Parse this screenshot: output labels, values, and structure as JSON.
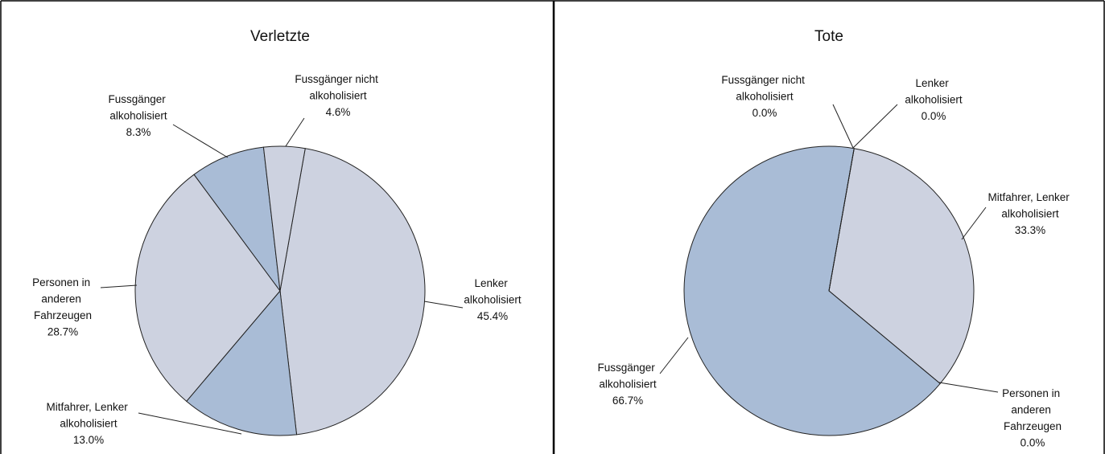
{
  "chart_data": [
    {
      "type": "pie",
      "title": "Verletzte",
      "categories": [
        "Lenker alkoholisiert",
        "Mitfahrer, Lenker alkoholisiert",
        "Personen in anderen Fahrzeugen",
        "Fussgänger alkoholisiert",
        "Fussgänger nicht alkoholisiert"
      ],
      "values": [
        45.4,
        13.0,
        28.7,
        8.3,
        4.6
      ],
      "value_labels": [
        "45.4%",
        "13.0%",
        "28.7%",
        "8.3%",
        "4.6%"
      ],
      "colors": [
        "#cdd2e0",
        "#a9bcd6",
        "#cdd2e0",
        "#a9bcd6",
        "#cdd2e0"
      ]
    },
    {
      "type": "pie",
      "title": "Tote",
      "categories": [
        "Mitfahrer, Lenker alkoholisiert",
        "Personen in anderen Fahrzeugen",
        "Fussgänger alkoholisiert",
        "Fussgänger nicht alkoholisiert",
        "Lenker alkoholisiert"
      ],
      "values": [
        33.3,
        0.0,
        66.7,
        0.0,
        0.0
      ],
      "value_labels": [
        "33.3%",
        "0.0%",
        "66.7%",
        "0.0%",
        "0.0%"
      ],
      "colors": [
        "#cdd2e0",
        "#cdd2e0",
        "#a9bcd6",
        "#cdd2e0",
        "#cdd2e0"
      ]
    }
  ]
}
